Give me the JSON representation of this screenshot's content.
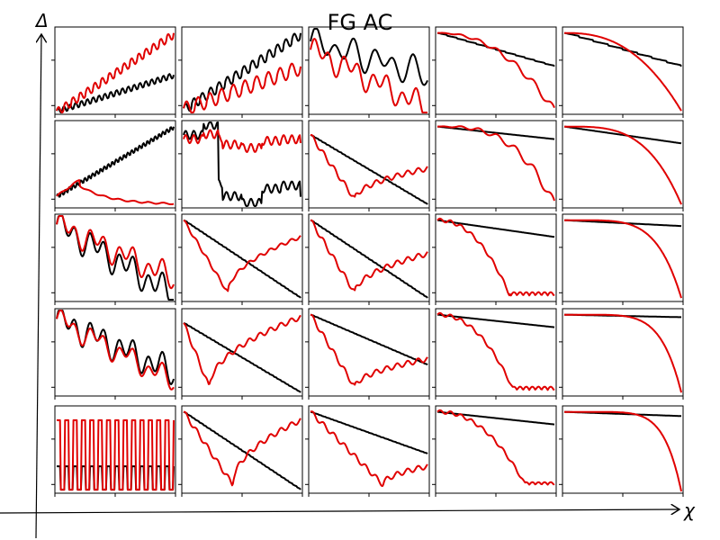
{
  "chart_data": {
    "type": "line",
    "title": "FG AC",
    "xlabel": "χ",
    "ylabel": "Δ",
    "grid": false,
    "legend": "none",
    "layout": {
      "rows": 5,
      "cols": 5
    },
    "colors": {
      "black_series": "#000000",
      "red_series": "#e00000"
    },
    "panel_shapes": [
      [
        {
          "black": [
            "ramp",
            0.02,
            0.45,
            20,
            0.03
          ],
          "red": [
            "ramp",
            0.02,
            0.95,
            16,
            0.04
          ]
        },
        {
          "black": [
            "ramp",
            0.05,
            0.95,
            14,
            0.05
          ],
          "red": [
            "ramp",
            0.05,
            0.55,
            10,
            0.08
          ]
        },
        {
          "black": [
            "bumpy",
            0.85,
            0.45,
            6,
            0.12
          ],
          "red": [
            "bumpy",
            0.75,
            0.05,
            8,
            0.1
          ]
        },
        {
          "black": [
            "lin",
            0.95,
            0.55,
            12,
            0.02
          ],
          "red": [
            "curve",
            0.95,
            0.02,
            2.2,
            0.05
          ]
        },
        {
          "black": [
            "lin",
            0.95,
            0.55,
            8,
            0.0
          ],
          "red": [
            "curve",
            0.95,
            0.02,
            2.5,
            0.0
          ]
        }
      ],
      [
        {
          "black": [
            "ramp",
            0.12,
            0.95,
            30,
            0.02
          ],
          "red": [
            "hump",
            0.12,
            0.02,
            0.2,
            0.03
          ]
        },
        {
          "black": [
            "steps",
            0.85,
            0.15,
            6,
            0.12
          ],
          "red": [
            "steps",
            0.8,
            0.75,
            6,
            0.06
          ]
        },
        {
          "black": [
            "lin",
            0.85,
            0.02,
            30,
            0.02
          ],
          "red": [
            "valley",
            0.85,
            0.45,
            0.38,
            0.03
          ]
        },
        {
          "black": [
            "lin",
            0.95,
            0.8,
            0,
            0.0
          ],
          "red": [
            "curve",
            0.95,
            0.02,
            3.0,
            0.06
          ]
        },
        {
          "black": [
            "lin",
            0.95,
            0.75,
            0,
            0.0
          ],
          "red": [
            "curve",
            0.95,
            0.02,
            3.5,
            0.0
          ]
        }
      ],
      [
        {
          "black": [
            "bumpy",
            0.9,
            0.05,
            8,
            0.12
          ],
          "red": [
            "bumpy",
            0.9,
            0.25,
            8,
            0.1
          ]
        },
        {
          "black": [
            "lin",
            0.95,
            0.02,
            30,
            0.02
          ],
          "red": [
            "valley",
            0.95,
            0.75,
            0.38,
            0.02
          ]
        },
        {
          "black": [
            "lin",
            0.95,
            0.02,
            30,
            0.02
          ],
          "red": [
            "valley",
            0.95,
            0.55,
            0.38,
            0.03
          ]
        },
        {
          "black": [
            "lin",
            0.95,
            0.75,
            0,
            0.0
          ],
          "red": [
            "drop",
            0.95,
            0.05,
            0.62,
            0.04
          ]
        },
        {
          "black": [
            "lin",
            0.95,
            0.88,
            0,
            0.0
          ],
          "red": [
            "curve",
            0.95,
            0.02,
            5.0,
            0.0
          ]
        }
      ],
      [
        {
          "black": [
            "bumpy",
            0.9,
            0.25,
            8,
            0.12
          ],
          "red": [
            "bumpy",
            0.9,
            0.15,
            8,
            0.08
          ]
        },
        {
          "black": [
            "lin",
            0.85,
            0.02,
            30,
            0.02
          ],
          "red": [
            "valley",
            0.85,
            0.92,
            0.22,
            0.03
          ]
        },
        {
          "black": [
            "lin",
            0.95,
            0.35,
            30,
            0.02
          ],
          "red": [
            "valley",
            0.95,
            0.42,
            0.38,
            0.03
          ]
        },
        {
          "black": [
            "lin",
            0.95,
            0.8,
            0,
            0.0
          ],
          "red": [
            "drop",
            0.95,
            0.05,
            0.65,
            0.04
          ]
        },
        {
          "black": [
            "lin",
            0.95,
            0.92,
            0,
            0.0
          ],
          "red": [
            "curve",
            0.95,
            0.02,
            6.0,
            0.0
          ]
        }
      ],
      [
        {
          "black": [
            "pulse",
            0.3,
            0.02,
            0,
            0.2
          ],
          "red": [
            "pulse",
            0.85,
            0.02,
            0,
            0.2
          ]
        },
        {
          "black": [
            "lin",
            0.95,
            0.02,
            30,
            0.02
          ],
          "red": [
            "valley",
            0.95,
            0.85,
            0.42,
            0.03
          ]
        },
        {
          "black": [
            "lin",
            0.95,
            0.45,
            30,
            0.02
          ],
          "red": [
            "valley",
            0.95,
            0.3,
            0.62,
            0.03
          ]
        },
        {
          "black": [
            "lin",
            0.95,
            0.8,
            0,
            0.0
          ],
          "red": [
            "drop",
            0.95,
            0.08,
            0.75,
            0.03
          ]
        },
        {
          "black": [
            "lin",
            0.95,
            0.9,
            0,
            0.0
          ],
          "red": [
            "curve",
            0.95,
            0.0,
            7.0,
            0.0
          ]
        }
      ]
    ]
  }
}
